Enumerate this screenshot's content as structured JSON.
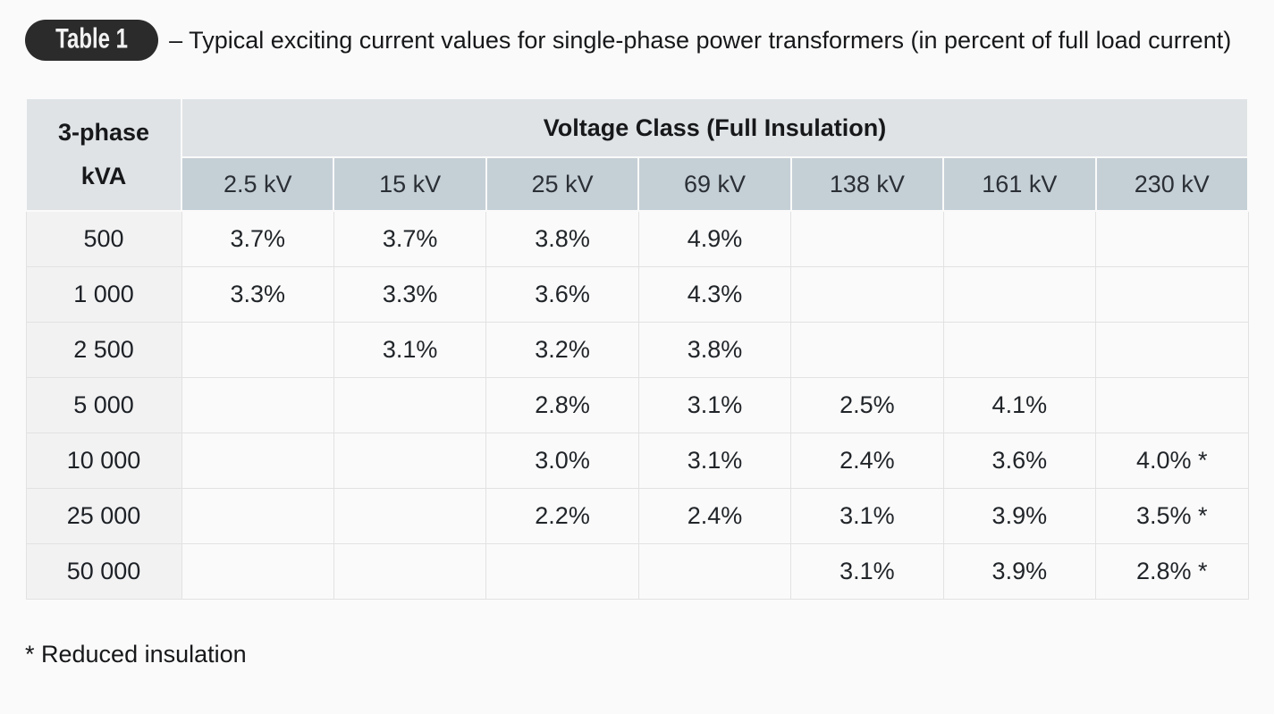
{
  "title": {
    "badge": "Table 1",
    "text": "– Typical exciting current values for single-phase power transformers (in percent of full load current)"
  },
  "table": {
    "corner_header": "3-phase kVA",
    "group_header": "Voltage Class (Full Insulation)",
    "columns": [
      "2.5 kV",
      "15 kV",
      "25 kV",
      "69 kV",
      "138 kV",
      "161 kV",
      "230 kV"
    ],
    "rows": [
      {
        "kva": "500",
        "values": [
          "3.7%",
          "3.7%",
          "3.8%",
          "4.9%",
          "",
          "",
          ""
        ]
      },
      {
        "kva": "1 000",
        "values": [
          "3.3%",
          "3.3%",
          "3.6%",
          "4.3%",
          "",
          "",
          ""
        ]
      },
      {
        "kva": "2 500",
        "values": [
          "",
          "3.1%",
          "3.2%",
          "3.8%",
          "",
          "",
          ""
        ]
      },
      {
        "kva": "5 000",
        "values": [
          "",
          "",
          "2.8%",
          "3.1%",
          "2.5%",
          "4.1%",
          ""
        ]
      },
      {
        "kva": "10 000",
        "values": [
          "",
          "",
          "3.0%",
          "3.1%",
          "2.4%",
          "3.6%",
          "4.0% *"
        ]
      },
      {
        "kva": "25 000",
        "values": [
          "",
          "",
          "2.2%",
          "2.4%",
          "3.1%",
          "3.9%",
          "3.5% *"
        ]
      },
      {
        "kva": "50 000",
        "values": [
          "",
          "",
          "",
          "",
          "3.1%",
          "3.9%",
          "2.8% *"
        ]
      }
    ]
  },
  "footnote": "* Reduced insulation",
  "colors": {
    "page_bg": "#fafafa",
    "badge_bg": "#2b2b2b",
    "badge_text": "#f2f2f2",
    "group_header_bg": "#dfe3e6",
    "kv_header_bg": "#c5cfd6",
    "row_header_bg": "#f2f2f3",
    "cell_bg": "#fafafa",
    "border": "#e2e2e2",
    "text": "#17181a"
  }
}
